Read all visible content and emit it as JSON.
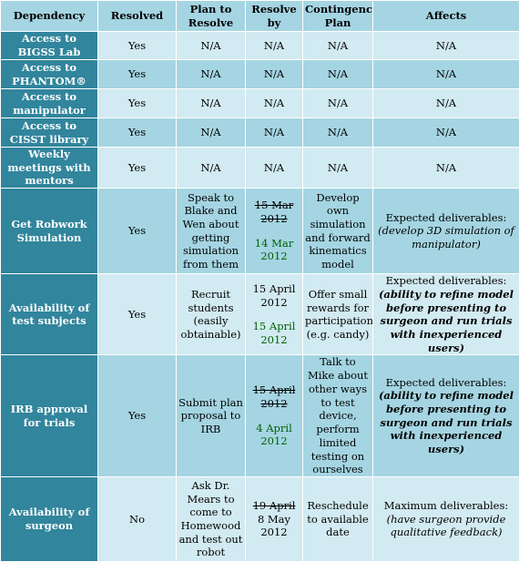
{
  "headers": {
    "dependency": "Dependency",
    "resolved": "Resolved",
    "plan": "Plan to Resolve",
    "resolve_by": "Resolve by",
    "contingency": "Contingency Plan",
    "affects": "Affects"
  },
  "rows": [
    {
      "dependency": "Access to BIGSS Lab",
      "resolved": "Yes",
      "plan": "N/A",
      "resolve_by": "N/A",
      "contingency": "N/A",
      "affects": "N/A"
    },
    {
      "dependency": "Access to PHANTOM®",
      "resolved": "Yes",
      "plan": "N/A",
      "resolve_by": "N/A",
      "contingency": "N/A",
      "affects": "N/A"
    },
    {
      "dependency": "Access to manipulator",
      "resolved": "Yes",
      "plan": "N/A",
      "resolve_by": "N/A",
      "contingency": "N/A",
      "affects": "N/A"
    },
    {
      "dependency": "Access to CISST library",
      "resolved": "Yes",
      "plan": "N/A",
      "resolve_by": "N/A",
      "contingency": "N/A",
      "affects": "N/A"
    },
    {
      "dependency": "Weekly meetings with mentors",
      "resolved": "Yes",
      "plan": "N/A",
      "resolve_by": "N/A",
      "contingency": "N/A",
      "affects": "N/A"
    },
    {
      "dependency": "Get Robwork Simulation",
      "resolved": "Yes",
      "plan": "Speak to Blake and Wen about getting simulation from them",
      "resolve_by_old": "15 Mar 2012",
      "resolve_by_new": "14 Mar 2012",
      "contingency": "Develop own simulation and forward kinematics model",
      "affects_label": "Expected deliverables:",
      "affects_detail": "(develop 3D simulation of manipulator)"
    },
    {
      "dependency": "Availability of test subjects",
      "resolved": "Yes",
      "plan": "Recruit students (easily obtainable)",
      "resolve_by_old": "15 April 2012",
      "resolve_by_new": "15 April 2012",
      "contingency": "Offer small rewards for participation (e.g. candy)",
      "affects_label": "Expected deliverables:",
      "affects_detail": "(ability to refine model before presenting to surgeon and run trials with inexperienced users)"
    },
    {
      "dependency": "IRB approval for trials",
      "resolved": "Yes",
      "plan": "Submit plan proposal to IRB",
      "resolve_by_old": "15 April 2012",
      "resolve_by_new": "4 April 2012",
      "contingency": "Talk to Mike about other ways to test device, perform limited testing on ourselves",
      "affects_label": "Expected deliverables:",
      "affects_detail": "(ability to refine model before presenting to surgeon and run trials with inexperienced users)"
    },
    {
      "dependency": "Availability of surgeon",
      "resolved": "No",
      "plan": "Ask Dr. Mears to come to Homewood and test out robot",
      "resolve_by_old": "19 April",
      "resolve_by_new": "8 May 2012",
      "contingency": "Reschedule to available date",
      "affects_label": "Maximum deliverables:",
      "affects_detail": "(have surgeon provide qualitative feedback)"
    }
  ]
}
